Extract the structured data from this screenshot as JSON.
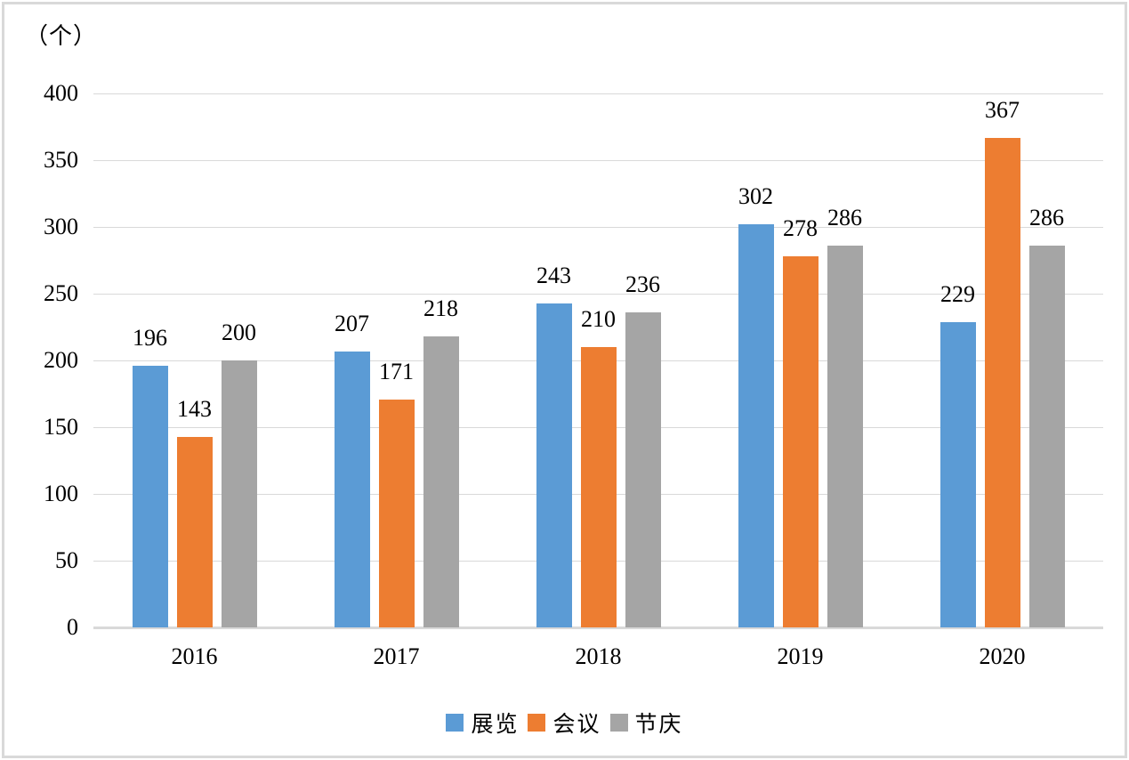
{
  "chart_data": {
    "type": "bar",
    "title": "",
    "unit_label": "（个）",
    "categories": [
      "2016",
      "2017",
      "2018",
      "2019",
      "2020"
    ],
    "series": [
      {
        "name": "展览",
        "color": "#5B9BD5",
        "values": [
          196,
          207,
          243,
          302,
          229
        ]
      },
      {
        "name": "会议",
        "color": "#ED7D31",
        "values": [
          143,
          171,
          210,
          278,
          367
        ]
      },
      {
        "name": "节庆",
        "color": "#A5A5A5",
        "values": [
          200,
          218,
          236,
          286,
          286
        ]
      }
    ],
    "ylim": [
      0,
      400
    ],
    "yticks": [
      0,
      50,
      100,
      150,
      200,
      250,
      300,
      350,
      400
    ],
    "grid": true,
    "data_labels": true,
    "legend_position": "bottom",
    "gridline_color": "#D9D9D9",
    "axis_line_color": "#D9D9D9",
    "text_color": "#000000",
    "background_color": "#FFFFFF",
    "border_color": "#D9D9D9"
  }
}
